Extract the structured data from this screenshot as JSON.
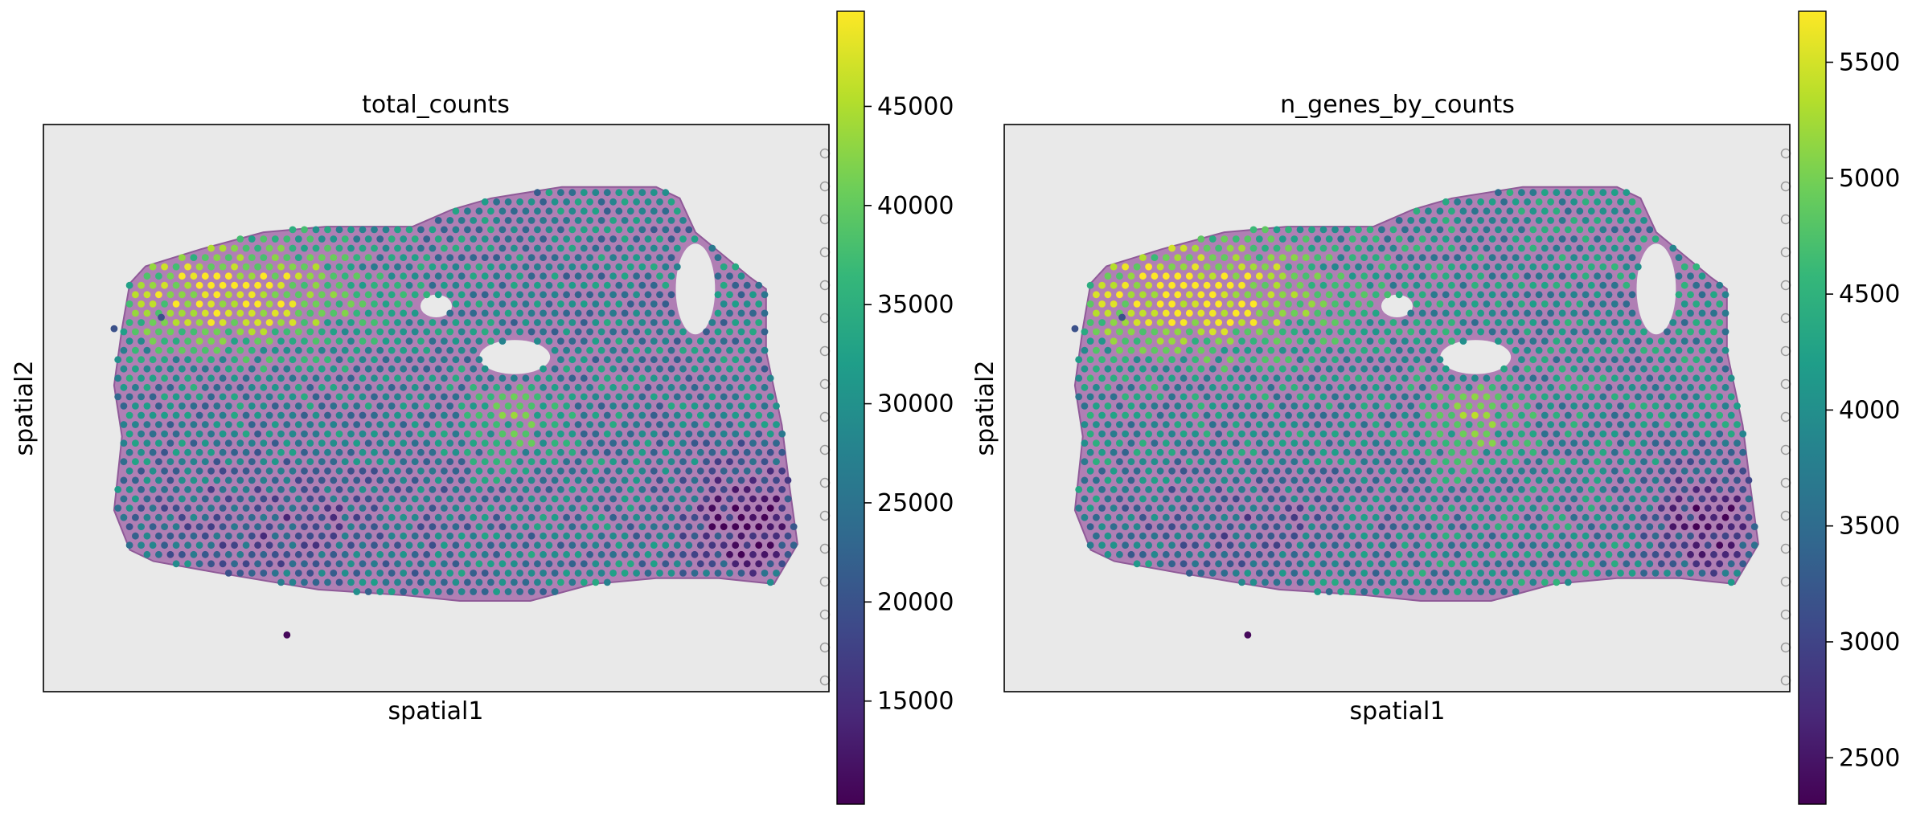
{
  "colormap": [
    "#440154",
    "#482878",
    "#3e4989",
    "#31688e",
    "#26828e",
    "#1f9e89",
    "#35b779",
    "#6ece58",
    "#b5de2b",
    "#fde725"
  ],
  "tissue_colors": {
    "background": "#e9e9e9",
    "tissue": "#b07fb4",
    "tissue_dark": "#8f5a98",
    "fiducial": "#9a9a9a"
  },
  "chart_data": [
    {
      "type": "scatter",
      "title": "total_counts",
      "xlabel": "spatial1",
      "ylabel": "spatial2",
      "colorbar": {
        "min": 9800,
        "max": 49800,
        "ticks": [
          15000,
          20000,
          25000,
          30000,
          35000,
          40000,
          45000
        ],
        "tick_labels": [
          "15000",
          "20000",
          "25000",
          "30000",
          "35000",
          "40000",
          "45000"
        ]
      },
      "value_range_shown": [
        9800,
        49800
      ],
      "hotspots": [
        {
          "region": "upper-left",
          "value": 47000
        },
        {
          "region": "lower-right",
          "value": 11000
        }
      ]
    },
    {
      "type": "scatter",
      "title": "n_genes_by_counts",
      "xlabel": "spatial1",
      "ylabel": "spatial2",
      "colorbar": {
        "min": 2300,
        "max": 5720,
        "ticks": [
          2500,
          3000,
          3500,
          4000,
          4500,
          5000,
          5500
        ],
        "tick_labels": [
          "2500",
          "3000",
          "3500",
          "4000",
          "4500",
          "5000",
          "5500"
        ]
      },
      "value_range_shown": [
        2300,
        5720
      ],
      "hotspots": [
        {
          "region": "upper-left",
          "value": 5400
        },
        {
          "region": "lower-right",
          "value": 2500
        }
      ]
    }
  ]
}
